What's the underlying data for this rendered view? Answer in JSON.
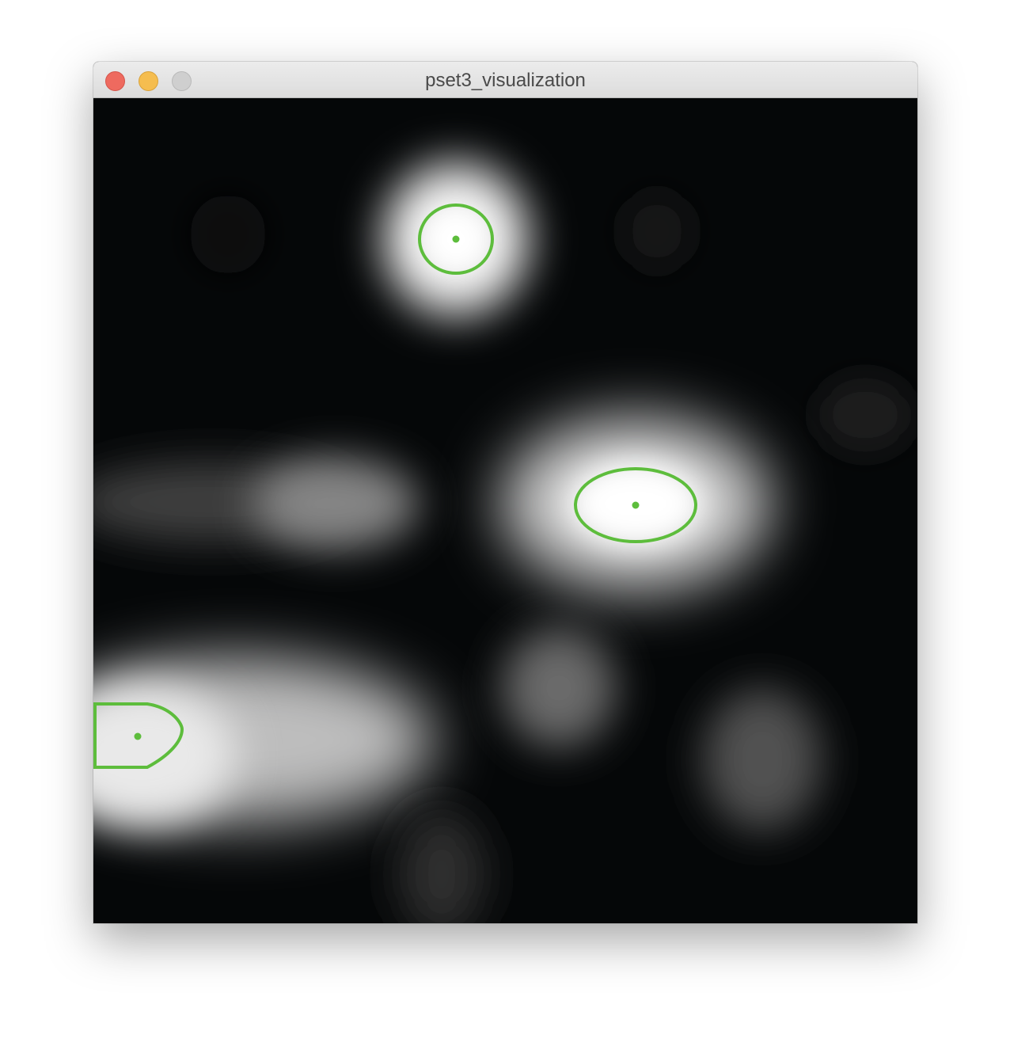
{
  "window": {
    "title": "pset3_visualization",
    "buttons": [
      {
        "name": "close",
        "color": "#ee6a5f"
      },
      {
        "name": "minimize",
        "color": "#f5bd4f"
      },
      {
        "name": "zoom",
        "color": "#cfcfcf"
      }
    ]
  },
  "visualization": {
    "background_color": "#050708",
    "contour_color": "#5dbd3c",
    "blob_color": "#ffffff",
    "blob_count": 11,
    "detected_keypoint_count": 3
  }
}
